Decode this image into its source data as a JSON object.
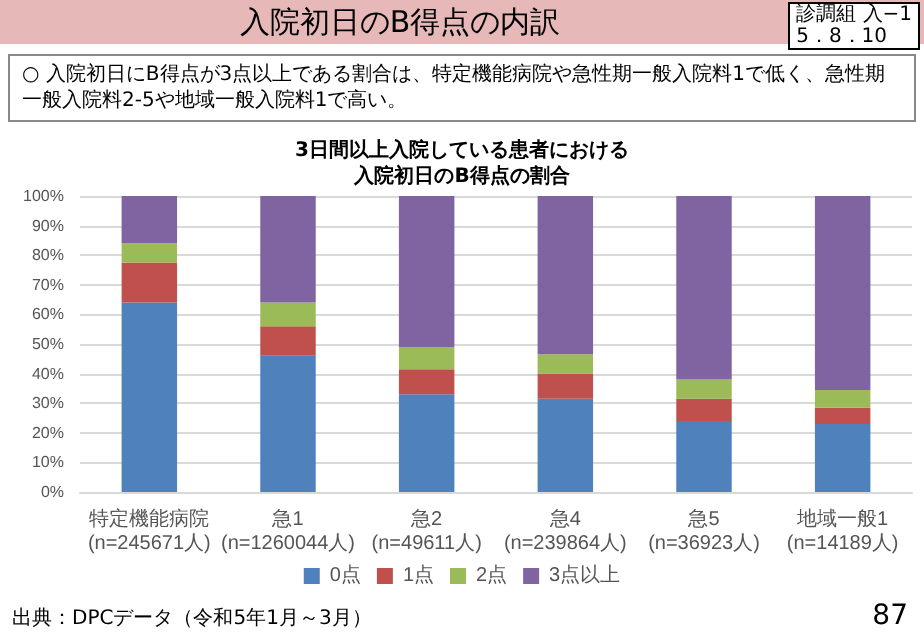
{
  "chart_data": {
    "type": "bar",
    "title": "入院初日のB得点の内訳",
    "subtitle": "3日間以上入院している患者における入院初日のB得点の割合",
    "annotations": [
      "○ 入院初日にB得点が3点以上である割合は、特定機能病院や急性期一般入院料1で低く、急性期一般入院料2-5や地域一般入院料1で高い。",
      "診調組 入−1\n5．8．10",
      "出典：DPCデータ（令和5年1月～3月）",
      "87"
    ],
    "categories": [
      "特定機能病院\n(n=245671人)",
      "急1\n(n=1260044人)",
      "急2\n(n=49611人)",
      "急4\n(n=239864人)",
      "急5\n(n=36923人)",
      "地域一般1\n(n=14189人)"
    ],
    "stacked": true,
    "series": [
      {
        "name": "0点",
        "color": "#4f81bd",
        "values": [
          64,
          46,
          33,
          31.5,
          24,
          23
        ]
      },
      {
        "name": "1点",
        "color": "#c0504d",
        "values": [
          13.5,
          10,
          8.5,
          8.5,
          7.5,
          5.5
        ]
      },
      {
        "name": "2点",
        "color": "#9bbb59",
        "values": [
          6.5,
          8,
          7.5,
          6.5,
          6.5,
          6
        ]
      },
      {
        "name": "3点以上",
        "color": "#8064a2",
        "values": [
          16,
          36,
          51,
          53.5,
          62,
          65.5
        ]
      }
    ],
    "ylim": [
      0,
      100
    ],
    "yticks": [
      {
        "value": 0,
        "label": "0%"
      },
      {
        "value": 10,
        "label": "10%"
      },
      {
        "value": 20,
        "label": "20%"
      },
      {
        "value": 30,
        "label": "30%"
      },
      {
        "value": 40,
        "label": "40%"
      },
      {
        "value": 50,
        "label": "50%"
      },
      {
        "value": 60,
        "label": "60%"
      },
      {
        "value": 70,
        "label": "70%"
      },
      {
        "value": 80,
        "label": "80%"
      },
      {
        "value": 90,
        "label": "90%"
      },
      {
        "value": 100,
        "label": "100%"
      }
    ],
    "grid": "y",
    "legend": "bottom"
  }
}
